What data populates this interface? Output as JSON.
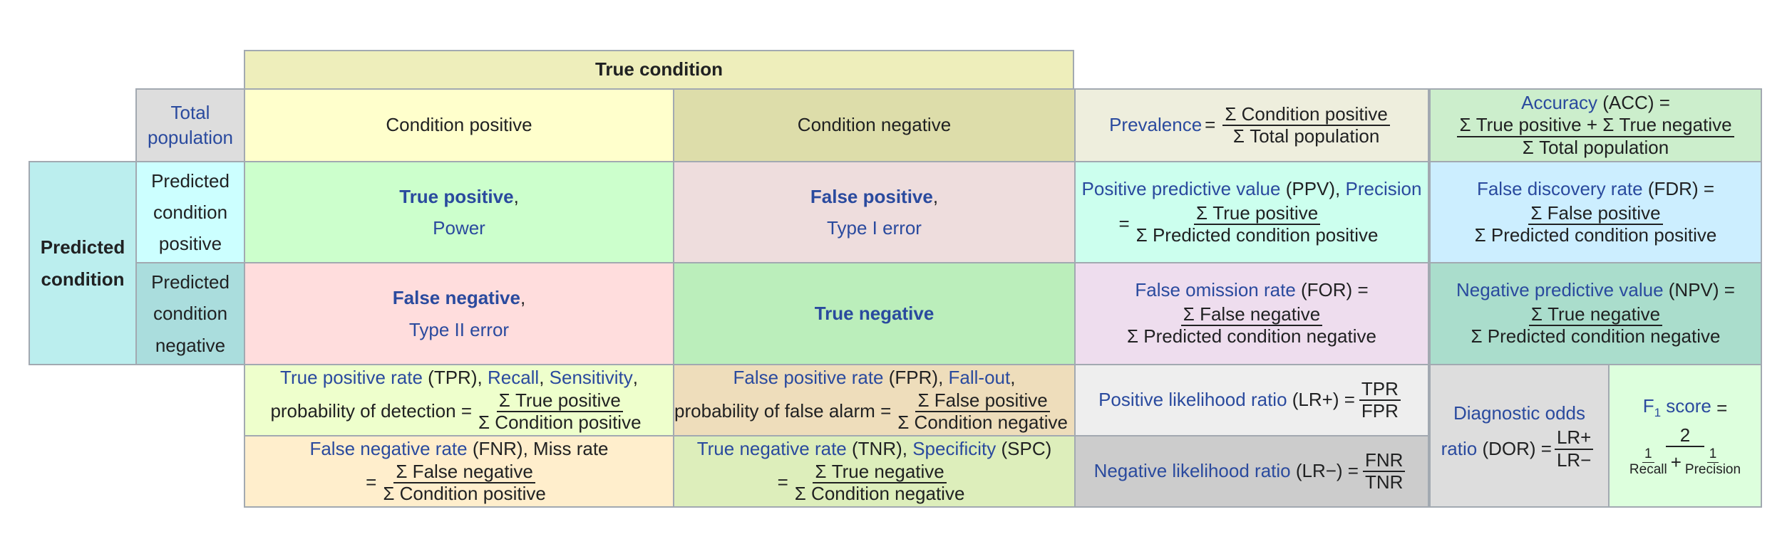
{
  "header": {
    "true_condition": "True condition",
    "total_population": "Total population",
    "condition_positive": "Condition positive",
    "condition_negative": "Condition negative",
    "predicted_condition": "Predicted condition",
    "predicted_condition_positive": "Predicted condition positive",
    "predicted_condition_negative": "Predicted condition negative"
  },
  "prevalence": {
    "name": "Prevalence",
    "eq": "=",
    "num": "Σ Condition positive",
    "den": "Σ Total population"
  },
  "accuracy": {
    "name": "Accuracy",
    "abbr": "(ACC) =",
    "num": "Σ True positive + Σ True negative",
    "den": "Σ Total population"
  },
  "tp": {
    "title": "True positive",
    "comma": ",",
    "sub": "Power"
  },
  "fp": {
    "title": "False positive",
    "comma": ",",
    "sub": "Type I error"
  },
  "fn": {
    "title": "False negative",
    "comma": ",",
    "sub": "Type II error"
  },
  "tn": {
    "title": "True negative"
  },
  "ppv": {
    "name": "Positive predictive value",
    "abbr": "(PPV),",
    "alt": "Precision",
    "eq": "=",
    "num": "Σ True positive",
    "den": "Σ Predicted condition positive"
  },
  "fdr": {
    "name": "False discovery rate",
    "abbr": "(FDR) =",
    "num": "Σ False positive",
    "den": "Σ Predicted condition positive"
  },
  "for": {
    "name": "False omission rate",
    "abbr": "(FOR) =",
    "num": "Σ False negative",
    "den": "Σ Predicted condition negative"
  },
  "npv": {
    "name": "Negative predictive value",
    "abbr": "(NPV) =",
    "num": "Σ True negative",
    "den": "Σ Predicted condition negative"
  },
  "tpr": {
    "name": "True positive rate",
    "abbr": "(TPR),",
    "recall": "Recall",
    "comma": ",",
    "sensitivity": "Sensitivity",
    "comma2": ",",
    "prefix": "probability of detection =",
    "num": "Σ True positive",
    "den": "Σ Condition positive"
  },
  "fpr": {
    "name": "False positive rate",
    "abbr": "(FPR),",
    "fallout": "Fall-out",
    "comma": ",",
    "prefix": "probability of false alarm =",
    "num": "Σ False positive",
    "den": "Σ Condition negative"
  },
  "fnr": {
    "name": "False negative rate",
    "abbr": "(FNR), Miss rate",
    "eq": "=",
    "num": "Σ False negative",
    "den": "Σ Condition positive"
  },
  "tnr": {
    "name": "True negative rate",
    "abbr": "(TNR),",
    "specificity": "Specificity",
    "abbr2": "(SPC)",
    "eq": "=",
    "num": "Σ True negative",
    "den": "Σ Condition negative"
  },
  "lrp": {
    "name": "Positive likelihood ratio",
    "abbr": "(LR+) =",
    "num": "TPR",
    "den": "FPR"
  },
  "lrn": {
    "name": "Negative likelihood ratio",
    "abbr": "(LR−) =",
    "num": "FNR",
    "den": "TNR"
  },
  "dor": {
    "line1": "Diagnostic odds",
    "line2": "ratio",
    "abbr": "(DOR) =",
    "num": "LR+",
    "den": "LR−"
  },
  "f1": {
    "name": "F",
    "sub": "1",
    "name2": "score",
    "eq": "=",
    "num": "2",
    "one_a": "1",
    "recall": "Recall",
    "plus": "+",
    "one_b": "1",
    "precision": "Precision"
  },
  "colors": {
    "true_condition": "#eeeebb",
    "total_population": "#dddddd",
    "condition_positive": "#ffffcc",
    "condition_negative": "#ddddaa",
    "prevalence": "#eeeedd",
    "accuracy": "#cceecc",
    "predicted_condition": "#bbeeee",
    "pred_positive": "#ccffff",
    "pred_negative": "#aadddd",
    "tp": "#ccffcc",
    "fp": "#eedddd",
    "fn": "#ffdddd",
    "tn": "#bbeebb",
    "ppv": "#ccffee",
    "fdr": "#cceeff",
    "for": "#eeddee",
    "npv": "#aaddcc",
    "tpr": "#eeffcc",
    "fpr": "#eeddbb",
    "fnr": "#ffeecc",
    "tnr": "#ddeebb",
    "lrp": "#eeeeee",
    "lrn": "#cccccc",
    "dor": "#dddddd",
    "f1": "#ddffdd",
    "link": "#2a4a9e"
  }
}
